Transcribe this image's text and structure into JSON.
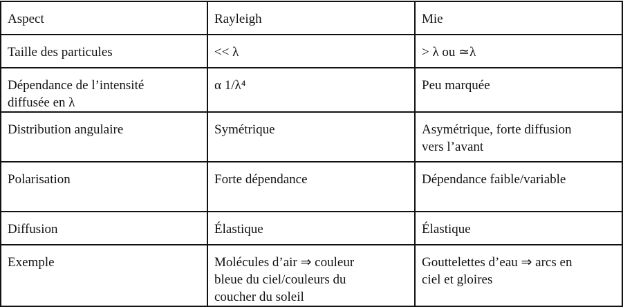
{
  "table": {
    "header": [
      [
        "Aspect"
      ],
      [
        "Rayleigh"
      ],
      [
        "Mie"
      ]
    ],
    "rows": [
      [
        [
          "Taille des particules"
        ],
        [
          "<< λ"
        ],
        [
          "> λ ou ≃λ"
        ]
      ],
      [
        [
          "Dépendance de l’intensité",
          "diffusée en λ"
        ],
        [
          "α 1/λ⁴"
        ],
        [
          "Peu marquée"
        ]
      ],
      [
        [
          "Distribution angulaire"
        ],
        [
          "Symétrique"
        ],
        [
          "Asymétrique, forte diffusion",
          "vers l’avant"
        ]
      ],
      [
        [
          "Polarisation"
        ],
        [
          "Forte dépendance"
        ],
        [
          "Dépendance faible/variable"
        ]
      ],
      [
        [
          "Diffusion"
        ],
        [
          "Élastique"
        ],
        [
          "Élastique"
        ]
      ],
      [
        [
          "Exemple"
        ],
        [
          "Molécules d’air ⇒ couleur",
          "bleue du ciel/couleurs du",
          "coucher du soleil"
        ],
        [
          "Gouttelettes d’eau ⇒ arcs en",
          "ciel et gloires"
        ]
      ]
    ]
  }
}
